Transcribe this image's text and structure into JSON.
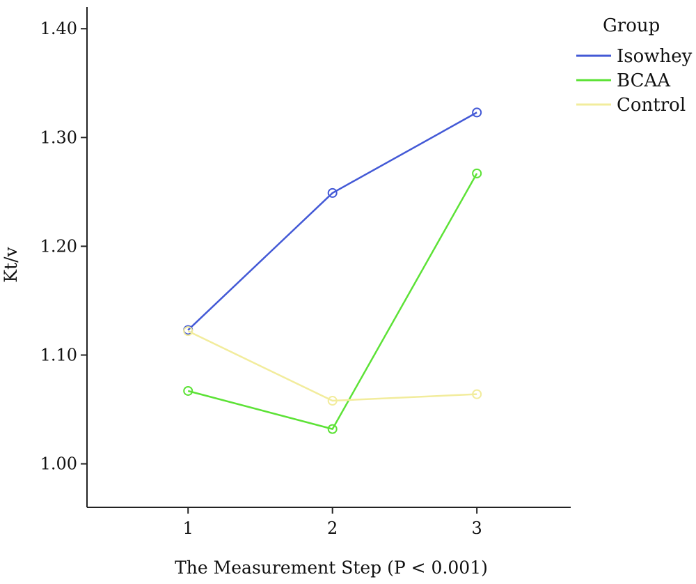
{
  "chart_data": {
    "type": "line",
    "title": "",
    "xlabel": "The Measurement Step (P < 0.001)",
    "ylabel": "Kt/v",
    "x": [
      1,
      2,
      3
    ],
    "x_tick_labels": [
      "1",
      "2",
      "3"
    ],
    "xlim": [
      0.3,
      3.65
    ],
    "ylim": [
      0.96,
      1.42
    ],
    "y_ticks": [
      1.0,
      1.1,
      1.2,
      1.3,
      1.4
    ],
    "y_tick_labels": [
      "1.00",
      "1.10",
      "1.20",
      "1.30",
      "1.40"
    ],
    "grid": false,
    "marker": "circle",
    "legend": {
      "title": "Group",
      "position": "top-right"
    },
    "series": [
      {
        "name": "Isowhey",
        "color": "#4359d6",
        "values": [
          1.123,
          1.249,
          1.323
        ]
      },
      {
        "name": "BCAA",
        "color": "#5ce236",
        "values": [
          1.067,
          1.032,
          1.267
        ]
      },
      {
        "name": "Control",
        "color": "#f2ec9c",
        "values": [
          1.122,
          1.058,
          1.064
        ]
      }
    ]
  }
}
